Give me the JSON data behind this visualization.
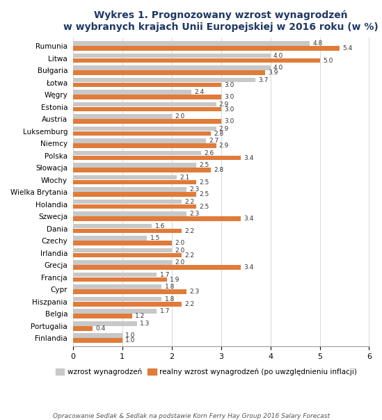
{
  "title": "Wykres 1. Prognozowany wzrost wynagrodzeń\nw wybranych krajach Unii Europejskiej w 2016 roku (w %)",
  "countries": [
    "Rumunia",
    "Litwa",
    "Bułgaria",
    "Łotwa",
    "Węgry",
    "Estonia",
    "Austria",
    "Luksemburg",
    "Niemcy",
    "Polska",
    "Słowacja",
    "Włochy",
    "Wielka Brytania",
    "Holandia",
    "Szwecja",
    "Dania",
    "Czechy",
    "Irlandia",
    "Grecja",
    "Francja",
    "Cypr",
    "Hiszpania",
    "Belgia",
    "Portugalia",
    "Finlandia"
  ],
  "wzrost": [
    4.8,
    4.0,
    4.0,
    3.7,
    2.4,
    2.9,
    2.0,
    2.9,
    2.7,
    2.6,
    2.5,
    2.1,
    2.3,
    2.2,
    2.3,
    1.6,
    1.5,
    2.0,
    2.0,
    1.7,
    1.8,
    1.8,
    1.7,
    1.3,
    1.0
  ],
  "realny": [
    5.4,
    5.0,
    3.9,
    3.0,
    3.0,
    3.0,
    3.0,
    2.8,
    2.9,
    3.4,
    2.8,
    2.5,
    2.5,
    2.5,
    3.4,
    2.2,
    2.0,
    2.2,
    3.4,
    1.9,
    2.3,
    2.2,
    1.2,
    0.4,
    1.0
  ],
  "bar_color_gray": "#c8c8c8",
  "bar_color_orange": "#e07b39",
  "xlim": [
    0,
    6
  ],
  "xticks": [
    0,
    1,
    2,
    3,
    4,
    5,
    6
  ],
  "footnote": "Opracowanie Sedlak & Sedlak na podstawie Korn Ferry Hay Group 2016 Salary Forecast",
  "legend_gray": "wzrost wynagrodzeń",
  "legend_orange": "realny wzrost wynagrodzeń (po uwzględnieniu inflacji)",
  "title_color": "#1f3864",
  "bg_color": "#ffffff"
}
